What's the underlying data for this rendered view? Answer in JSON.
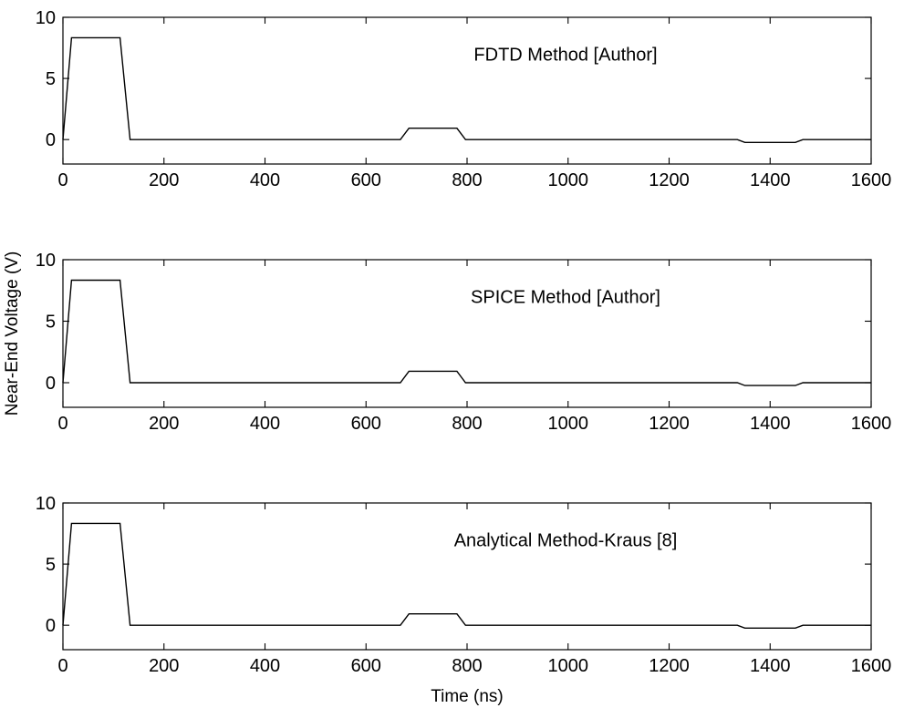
{
  "figure": {
    "ylabel": "Near-End Voltage (V)",
    "xlabel": "Time (ns)"
  },
  "chart_data": [
    {
      "type": "line",
      "title": "FDTD Method [Author]",
      "xlim": [
        0,
        1600
      ],
      "ylim": [
        -2,
        10
      ],
      "xticks": [
        0,
        200,
        400,
        600,
        800,
        1000,
        1200,
        1400,
        1600
      ],
      "yticks": [
        0,
        5,
        10
      ],
      "grid": false,
      "series": [
        {
          "x": [
            0,
            17,
            113,
            133,
            668,
            685,
            780,
            797,
            1335,
            1350,
            1450,
            1465,
            1600
          ],
          "y": [
            0,
            8.33,
            8.33,
            0,
            0,
            0.93,
            0.93,
            0,
            0,
            -0.23,
            -0.23,
            0,
            0
          ]
        }
      ]
    },
    {
      "type": "line",
      "title": "SPICE Method [Author]",
      "xlim": [
        0,
        1600
      ],
      "ylim": [
        -2,
        10
      ],
      "xticks": [
        0,
        200,
        400,
        600,
        800,
        1000,
        1200,
        1400,
        1600
      ],
      "yticks": [
        0,
        5,
        10
      ],
      "grid": false,
      "series": [
        {
          "x": [
            0,
            17,
            113,
            133,
            668,
            685,
            780,
            797,
            1335,
            1350,
            1450,
            1465,
            1600
          ],
          "y": [
            0,
            8.33,
            8.33,
            0,
            0,
            0.93,
            0.93,
            0,
            0,
            -0.23,
            -0.23,
            0,
            0
          ]
        }
      ]
    },
    {
      "type": "line",
      "title": "Analytical Method-Kraus [8]",
      "xlim": [
        0,
        1600
      ],
      "ylim": [
        -2,
        10
      ],
      "xticks": [
        0,
        200,
        400,
        600,
        800,
        1000,
        1200,
        1400,
        1600
      ],
      "yticks": [
        0,
        5,
        10
      ],
      "grid": false,
      "series": [
        {
          "x": [
            0,
            17,
            113,
            133,
            668,
            685,
            780,
            797,
            1335,
            1350,
            1450,
            1465,
            1600
          ],
          "y": [
            0,
            8.33,
            8.33,
            0,
            0,
            0.93,
            0.93,
            0,
            0,
            -0.23,
            -0.23,
            0,
            0
          ]
        }
      ]
    }
  ]
}
